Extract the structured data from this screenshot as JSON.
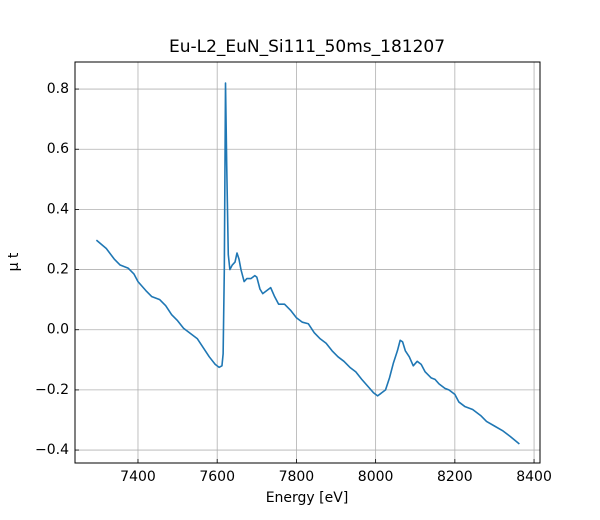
{
  "chart_data": {
    "type": "line",
    "title": "Eu-L2_EuN_Si111_50ms_181207",
    "xlabel": "Energy [eV]",
    "ylabel": "μ t",
    "x": [
      7295,
      7320,
      7340,
      7355,
      7375,
      7390,
      7400,
      7420,
      7435,
      7455,
      7470,
      7485,
      7500,
      7515,
      7530,
      7550,
      7565,
      7580,
      7595,
      7605,
      7612,
      7615,
      7618,
      7621,
      7624,
      7628,
      7632,
      7638,
      7645,
      7650,
      7655,
      7660,
      7668,
      7675,
      7685,
      7695,
      7700,
      7708,
      7715,
      7725,
      7735,
      7745,
      7755,
      7770,
      7785,
      7800,
      7815,
      7830,
      7845,
      7860,
      7875,
      7890,
      7905,
      7920,
      7935,
      7950,
      7965,
      7975,
      7985,
      7995,
      8005,
      8015,
      8025,
      8035,
      8045,
      8055,
      8062,
      8068,
      8075,
      8085,
      8095,
      8105,
      8115,
      8125,
      8140,
      8150,
      8160,
      8175,
      8185,
      8200,
      8210,
      8225,
      8245,
      8265,
      8280,
      8300,
      8320,
      8340,
      8363
    ],
    "series": [
      {
        "name": "mu",
        "color": "#1f77b4",
        "values": [
          0.298,
          0.27,
          0.235,
          0.215,
          0.205,
          0.185,
          0.16,
          0.13,
          0.11,
          0.1,
          0.08,
          0.05,
          0.03,
          0.005,
          -0.01,
          -0.03,
          -0.06,
          -0.09,
          -0.115,
          -0.125,
          -0.12,
          -0.08,
          0.2,
          0.82,
          0.55,
          0.25,
          0.2,
          0.215,
          0.225,
          0.255,
          0.235,
          0.2,
          0.16,
          0.17,
          0.17,
          0.18,
          0.175,
          0.135,
          0.12,
          0.13,
          0.14,
          0.11,
          0.085,
          0.085,
          0.065,
          0.04,
          0.025,
          0.02,
          -0.01,
          -0.03,
          -0.045,
          -0.07,
          -0.09,
          -0.105,
          -0.125,
          -0.14,
          -0.165,
          -0.18,
          -0.195,
          -0.21,
          -0.22,
          -0.21,
          -0.2,
          -0.16,
          -0.11,
          -0.07,
          -0.035,
          -0.04,
          -0.07,
          -0.09,
          -0.12,
          -0.105,
          -0.115,
          -0.14,
          -0.16,
          -0.165,
          -0.18,
          -0.195,
          -0.2,
          -0.215,
          -0.24,
          -0.255,
          -0.265,
          -0.285,
          -0.305,
          -0.32,
          -0.335,
          -0.355,
          -0.38
        ]
      }
    ],
    "xlim": [
      7241,
      8415
    ],
    "xticks": [
      7400,
      7600,
      7800,
      8000,
      8200,
      8400
    ],
    "ylim": [
      -0.443,
      0.89
    ],
    "yticks": [
      {
        "value": -0.4,
        "label": "−0.4"
      },
      {
        "value": -0.2,
        "label": "−0.2"
      },
      {
        "value": 0,
        "label": "0.0"
      },
      0.2,
      0.4,
      0.6,
      0.8
    ],
    "grid": true
  }
}
